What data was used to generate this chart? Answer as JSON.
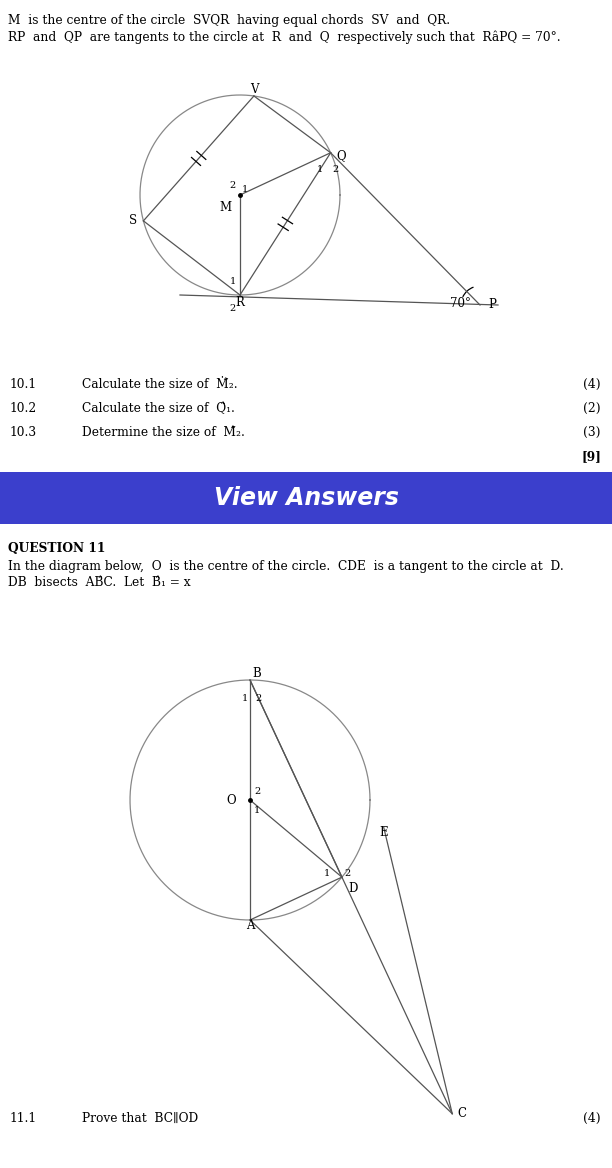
{
  "bg_color": "#ffffff",
  "fig_width": 6.12,
  "fig_height": 11.68,
  "dpi": 100,
  "header_text_q10_line1": "M  is the centre of the circle  SVQR  having equal chords  SV  and  QR.",
  "header_text_q10_line2": "RP  and  QP  are tangents to the circle at  R  and  Q  respectively such that  RâPQ = 70°.",
  "q10_1_num": "10.1",
  "q10_1_marks": "(4)",
  "q10_2_num": "10.2",
  "q10_2_marks": "(2)",
  "q10_3_num": "10.3",
  "q10_3_marks": "(3)",
  "q10_total": "[9]",
  "view_answers_text": "View Answers",
  "view_answers_bg": "#3b3fcc",
  "view_answers_text_color": "#ffffff",
  "q11_header": "QUESTION 11",
  "q11_line1": "In the diagram below,  O  is the centre of the circle.  CDE  is a tangent to the circle at  D.",
  "q11_line2": "DB  bisects  AB̂C.  Let  B̂₁ = x",
  "q11_1_num": "11.1",
  "q11_1_marks": "(4)"
}
